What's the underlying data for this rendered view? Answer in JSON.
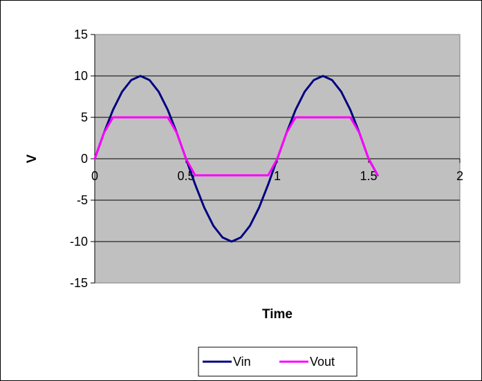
{
  "chart_data": {
    "type": "line",
    "title": "",
    "xlabel": "Time",
    "ylabel": "V",
    "xlim": [
      0,
      2
    ],
    "ylim": [
      -15,
      15
    ],
    "x_ticks": [
      0,
      0.5,
      1,
      1.5,
      2
    ],
    "x_tick_labels": [
      "0",
      "0.5",
      "1",
      "1.5",
      "2"
    ],
    "y_ticks": [
      15,
      10,
      5,
      0,
      -5,
      -10,
      -15
    ],
    "y_tick_labels": [
      "15",
      "10",
      "5",
      "0",
      "-5",
      "-10",
      "-15"
    ],
    "grid": "horizontal",
    "plot_background": "#c0c0c0",
    "legend_position": "bottom",
    "x": [
      0,
      0.05,
      0.1,
      0.15,
      0.2,
      0.25,
      0.3,
      0.35,
      0.4,
      0.45,
      0.5,
      0.55,
      0.6,
      0.65,
      0.7,
      0.75,
      0.8,
      0.85,
      0.9,
      0.95,
      1.0,
      1.05,
      1.1,
      1.15,
      1.2,
      1.25,
      1.3,
      1.35,
      1.4,
      1.45,
      1.5,
      1.55
    ],
    "series": [
      {
        "name": "Vin",
        "color": "#000080",
        "values": [
          0,
          3.1,
          5.9,
          8.1,
          9.5,
          10,
          9.5,
          8.1,
          5.9,
          3.1,
          0,
          -3.1,
          -5.9,
          -8.1,
          -9.5,
          -10,
          -9.5,
          -8.1,
          -5.9,
          -3.1,
          0,
          3.1,
          5.9,
          8.1,
          9.5,
          10,
          9.5,
          8.1,
          5.9,
          3.1,
          0,
          -2
        ]
      },
      {
        "name": "Vout",
        "color": "#ff00ff",
        "values": [
          0,
          3.1,
          5,
          5,
          5,
          5,
          5,
          5,
          5,
          3.1,
          0,
          -2,
          -2,
          -2,
          -2,
          -2,
          -2,
          -2,
          -2,
          -2,
          0,
          3.1,
          5,
          5,
          5,
          5,
          5,
          5,
          5,
          3.1,
          0,
          -2
        ]
      }
    ]
  }
}
